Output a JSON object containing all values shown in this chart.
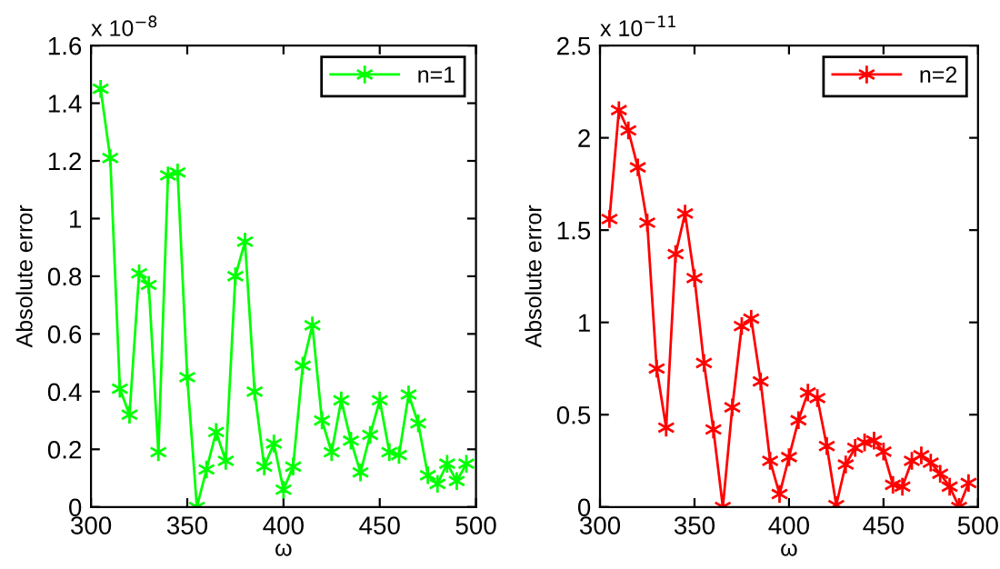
{
  "chart_data": [
    {
      "type": "line",
      "xlabel": "ω",
      "ylabel": "Absolute error",
      "annotations": [
        "x 10$^{−8}$"
      ],
      "x": [
        305,
        310,
        315,
        320,
        325,
        330,
        335,
        340,
        345,
        350,
        355,
        360,
        365,
        370,
        375,
        380,
        385,
        390,
        395,
        400,
        405,
        410,
        415,
        420,
        425,
        430,
        435,
        440,
        445,
        450,
        455,
        460,
        465,
        470,
        475,
        480,
        485,
        490,
        495
      ],
      "series": [
        {
          "name": "n=1",
          "color": "#00ff00",
          "values": [
            1.45,
            1.21,
            0.41,
            0.32,
            0.81,
            0.77,
            0.19,
            1.15,
            1.16,
            0.45,
            0.0,
            0.13,
            0.26,
            0.16,
            0.8,
            0.92,
            0.4,
            0.14,
            0.22,
            0.06,
            0.14,
            0.49,
            0.63,
            0.3,
            0.19,
            0.37,
            0.23,
            0.12,
            0.25,
            0.37,
            0.19,
            0.18,
            0.39,
            0.29,
            0.11,
            0.08,
            0.15,
            0.09,
            0.15
          ]
        }
      ],
      "xlim": [
        300,
        500
      ],
      "xticks": [
        300,
        350,
        400,
        450,
        500
      ],
      "ylim": [
        0,
        1.6
      ],
      "yticks": [
        0,
        0.2,
        0.4,
        0.6,
        0.8,
        1,
        1.2,
        1.4,
        1.6
      ],
      "legend": "top right",
      "marker": "cross",
      "line_style": "solid",
      "grid": false
    },
    {
      "type": "line",
      "xlabel": "ω",
      "ylabel": "Absolute error",
      "annotations": [
        "x 10$^{−11}$"
      ],
      "x": [
        305,
        310,
        315,
        320,
        325,
        330,
        335,
        340,
        345,
        350,
        355,
        360,
        365,
        370,
        375,
        380,
        385,
        390,
        395,
        400,
        405,
        410,
        415,
        420,
        425,
        430,
        435,
        440,
        445,
        450,
        455,
        460,
        465,
        470,
        475,
        480,
        485,
        490,
        495
      ],
      "series": [
        {
          "name": "n=2",
          "color": "#ff0000",
          "values": [
            1.56,
            2.15,
            2.04,
            1.84,
            1.54,
            0.75,
            0.43,
            1.37,
            1.59,
            1.24,
            0.78,
            0.42,
            0.0,
            0.54,
            0.98,
            1.02,
            0.68,
            0.25,
            0.07,
            0.27,
            0.47,
            0.62,
            0.59,
            0.33,
            0.01,
            0.23,
            0.32,
            0.35,
            0.36,
            0.3,
            0.12,
            0.11,
            0.25,
            0.28,
            0.24,
            0.18,
            0.11,
            0.0,
            0.13
          ]
        }
      ],
      "xlim": [
        300,
        500
      ],
      "xticks": [
        300,
        350,
        400,
        450,
        500
      ],
      "ylim": [
        0,
        2.5
      ],
      "yticks": [
        0,
        0.5,
        1,
        1.5,
        2,
        2.5
      ],
      "legend": "top right",
      "marker": "cross",
      "line_style": "solid",
      "grid": false
    }
  ]
}
